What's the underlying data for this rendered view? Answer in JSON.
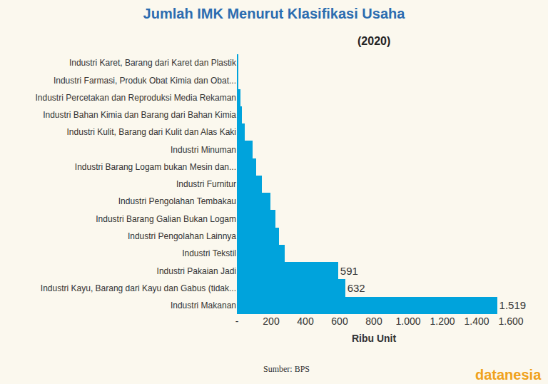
{
  "chart_data": {
    "type": "bar",
    "orientation": "horizontal",
    "title": "Jumlah IMK Menurut Klasifikasi Usaha",
    "subtitle": "(2020)",
    "x_label": "Ribu Unit",
    "source": "Sumber: BPS",
    "brand": "datanesia",
    "categories": [
      "Industri Karet, Barang dari Karet dan Plastik",
      "Industri Farmasi, Produk Obat Kimia dan Obat...",
      "Industri Percetakan dan Reproduksi Media Rekaman",
      "Industri Bahan Kimia dan Barang dari Bahan Kimia",
      "Industri Kulit, Barang dari Kulit dan Alas Kaki",
      "Industri Minuman",
      "Industri Barang Logam bukan Mesin dan...",
      "Industri Furnitur",
      "Industri Pengolahan Tembakau",
      "Industri Barang Galian Bukan Logam",
      "Industri Pengolahan Lainnya",
      "Industri Tekstil",
      "Industri Pakaian Jadi",
      "Industri Kayu, Barang dari Kayu dan Gabus (tidak...",
      "Industri Makanan"
    ],
    "values": [
      10,
      7,
      20,
      28,
      45,
      92,
      112,
      145,
      195,
      223,
      244,
      281,
      591,
      632,
      1519
    ],
    "data_labels": true,
    "value_labels": [
      null,
      null,
      null,
      null,
      null,
      null,
      null,
      null,
      null,
      null,
      null,
      null,
      "591",
      "632",
      "1.519"
    ],
    "color": "#00a3dc",
    "xlim": [
      0,
      1600
    ],
    "xticks": [
      {
        "value": 0,
        "label": "-"
      },
      200,
      400,
      600,
      800,
      {
        "value": 1000,
        "label": "1.000"
      },
      {
        "value": 1200,
        "label": "1.200"
      },
      {
        "value": 1400,
        "label": "1.400"
      },
      {
        "value": 1600,
        "label": "1.600"
      }
    ],
    "grid": false
  }
}
